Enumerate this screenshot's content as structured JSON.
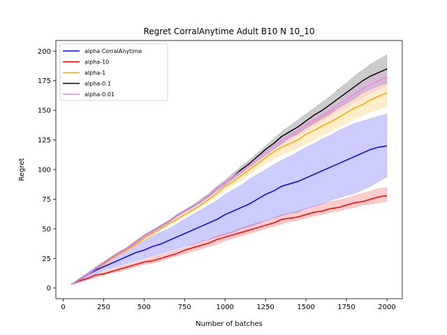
{
  "chart_data": {
    "type": "line",
    "title": "Regret CorralAnytime Adult B10 N 10_10",
    "xlabel": "Number of batches",
    "ylabel": "Regret",
    "xlim": [
      -45,
      2095
    ],
    "ylim": [
      -9,
      209
    ],
    "xticks": [
      0,
      250,
      500,
      750,
      1000,
      1250,
      1500,
      1750,
      2000
    ],
    "yticks": [
      0,
      25,
      50,
      75,
      100,
      125,
      150,
      175,
      200
    ],
    "grid": false,
    "legend_position": "upper-left",
    "x": [
      50,
      100,
      150,
      200,
      250,
      300,
      350,
      400,
      450,
      500,
      550,
      600,
      650,
      700,
      750,
      800,
      850,
      900,
      950,
      1000,
      1050,
      1100,
      1150,
      1200,
      1250,
      1300,
      1350,
      1400,
      1450,
      1500,
      1550,
      1600,
      1650,
      1700,
      1750,
      1800,
      1850,
      1900,
      1950,
      2000
    ],
    "series": [
      {
        "name": "alpha CorralAnytime",
        "color": "#0000ff",
        "values": [
          3,
          7,
          11,
          15,
          18,
          21,
          24,
          27,
          30,
          32,
          35,
          37,
          40,
          43,
          46,
          49,
          52,
          55,
          58,
          62,
          65,
          68,
          71,
          75,
          79,
          82,
          86,
          88,
          90,
          93,
          96,
          99,
          102,
          105,
          108,
          111,
          114,
          117,
          119,
          120
        ],
        "lower": [
          3,
          6,
          9,
          12,
          15,
          17,
          19,
          21,
          23,
          25,
          27,
          29,
          31,
          33,
          35,
          37,
          39,
          41,
          43,
          45,
          47,
          50,
          52,
          54,
          57,
          59,
          61,
          63,
          64,
          67,
          69,
          71,
          74,
          76,
          78,
          80,
          83,
          86,
          90,
          94
        ],
        "upper": [
          3,
          8,
          13,
          18,
          22,
          26,
          29,
          33,
          37,
          40,
          44,
          47,
          50,
          54,
          58,
          62,
          66,
          70,
          74,
          79,
          83,
          87,
          92,
          96,
          100,
          104,
          108,
          111,
          115,
          119,
          122,
          126,
          129,
          133,
          136,
          139,
          141,
          143,
          145,
          147
        ]
      },
      {
        "name": "alpha-10",
        "color": "#ff0000",
        "values": [
          3,
          6,
          8,
          11,
          12,
          14,
          16,
          18,
          20,
          22,
          23,
          25,
          27,
          29,
          32,
          34,
          36,
          38,
          41,
          43,
          45,
          47,
          49,
          51,
          53,
          55,
          58,
          59,
          60,
          62,
          64,
          65,
          67,
          68,
          70,
          72,
          73,
          75,
          77,
          78
        ],
        "lower": [
          3,
          5,
          7,
          9,
          11,
          13,
          14,
          16,
          18,
          20,
          21,
          23,
          25,
          27,
          29,
          31,
          33,
          35,
          37,
          40,
          42,
          44,
          46,
          48,
          50,
          52,
          54,
          56,
          57,
          59,
          61,
          62,
          64,
          65,
          67,
          68,
          70,
          71,
          72,
          73
        ],
        "upper": [
          3,
          7,
          9,
          12,
          14,
          16,
          18,
          20,
          22,
          24,
          26,
          28,
          30,
          32,
          34,
          37,
          39,
          41,
          44,
          46,
          48,
          51,
          53,
          55,
          57,
          59,
          62,
          63,
          65,
          67,
          69,
          71,
          73,
          74,
          76,
          78,
          80,
          82,
          84,
          85
        ]
      },
      {
        "name": "alpha-1",
        "color": "#ffa500",
        "values": [
          3,
          7,
          11,
          16,
          20,
          25,
          29,
          33,
          37,
          42,
          46,
          50,
          54,
          58,
          62,
          66,
          70,
          75,
          80,
          86,
          90,
          95,
          100,
          105,
          110,
          115,
          119,
          122,
          125,
          130,
          133,
          137,
          140,
          144,
          148,
          152,
          155,
          159,
          162,
          165
        ],
        "lower": [
          3,
          7,
          11,
          15,
          19,
          24,
          28,
          32,
          36,
          41,
          45,
          49,
          53,
          57,
          61,
          65,
          69,
          73,
          78,
          83,
          87,
          91,
          96,
          101,
          105,
          109,
          113,
          115,
          118,
          122,
          125,
          129,
          132,
          136,
          139,
          143,
          146,
          149,
          151,
          153
        ],
        "upper": [
          3,
          8,
          12,
          17,
          21,
          26,
          30,
          34,
          39,
          44,
          48,
          52,
          56,
          60,
          64,
          68,
          72,
          77,
          82,
          88,
          93,
          98,
          103,
          108,
          113,
          118,
          124,
          128,
          132,
          137,
          141,
          145,
          149,
          153,
          157,
          161,
          165,
          168,
          171,
          174
        ]
      },
      {
        "name": "alpha-0.1",
        "color": "#000000",
        "values": [
          3,
          7,
          11,
          16,
          21,
          26,
          30,
          34,
          39,
          44,
          48,
          52,
          56,
          61,
          65,
          69,
          73,
          78,
          84,
          89,
          94,
          100,
          105,
          111,
          117,
          122,
          128,
          132,
          136,
          141,
          146,
          150,
          155,
          160,
          165,
          170,
          175,
          179,
          182,
          185
        ],
        "lower": [
          3,
          7,
          11,
          15,
          20,
          25,
          29,
          33,
          38,
          43,
          47,
          51,
          55,
          60,
          64,
          68,
          72,
          77,
          82,
          87,
          92,
          97,
          102,
          107,
          112,
          117,
          122,
          127,
          130,
          135,
          139,
          143,
          147,
          152,
          156,
          160,
          165,
          168,
          171,
          173
        ],
        "upper": [
          3,
          8,
          12,
          17,
          22,
          27,
          31,
          35,
          40,
          45,
          49,
          53,
          57,
          62,
          66,
          70,
          75,
          80,
          86,
          91,
          97,
          103,
          108,
          114,
          120,
          126,
          132,
          137,
          142,
          147,
          152,
          157,
          162,
          168,
          173,
          179,
          184,
          189,
          193,
          197
        ]
      },
      {
        "name": "alpha-0.01",
        "color": "#ee82ee",
        "values": [
          3,
          7,
          11,
          16,
          21,
          26,
          30,
          34,
          39,
          44,
          48,
          52,
          56,
          61,
          65,
          69,
          73,
          78,
          84,
          89,
          94,
          99,
          104,
          110,
          115,
          120,
          125,
          129,
          133,
          138,
          142,
          146,
          150,
          155,
          159,
          164,
          168,
          172,
          175,
          178
        ],
        "lower": [
          3,
          7,
          11,
          15,
          20,
          25,
          29,
          33,
          38,
          43,
          47,
          51,
          55,
          60,
          64,
          68,
          72,
          77,
          82,
          87,
          92,
          97,
          102,
          107,
          112,
          117,
          121,
          125,
          129,
          133,
          137,
          141,
          145,
          149,
          153,
          157,
          161,
          165,
          168,
          171
        ],
        "upper": [
          3,
          8,
          12,
          17,
          22,
          27,
          31,
          35,
          40,
          45,
          49,
          53,
          57,
          62,
          66,
          70,
          74,
          79,
          85,
          91,
          96,
          101,
          106,
          112,
          117,
          122,
          128,
          132,
          136,
          141,
          146,
          150,
          155,
          160,
          164,
          169,
          174,
          178,
          182,
          185
        ]
      }
    ]
  }
}
